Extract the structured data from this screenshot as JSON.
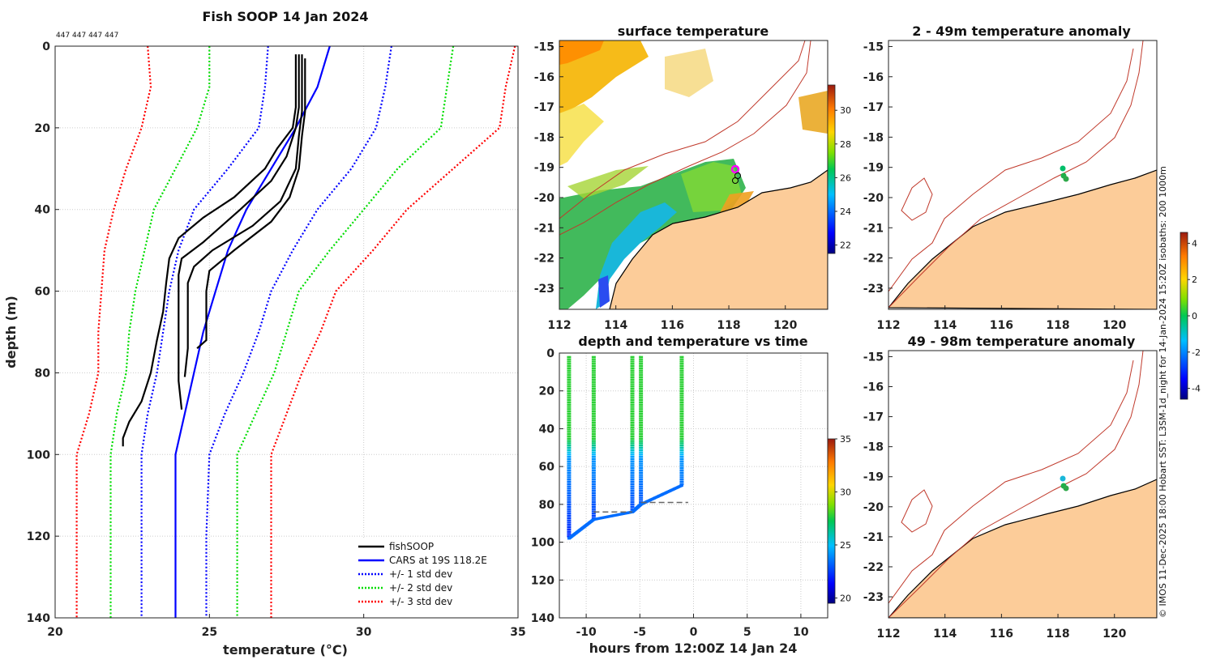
{
  "chart_data": [
    {
      "type": "line",
      "title": "Fish SOOP 14 Jan 2024",
      "ids_text": "447 447 447 447",
      "xlabel": "temperature (°C)",
      "ylabel": "depth (m)",
      "xlim": [
        20,
        35
      ],
      "ylim": [
        0,
        140
      ],
      "xticks": [
        "20",
        "25",
        "30",
        "35"
      ],
      "yticks": [
        "0",
        "20",
        "40",
        "60",
        "80",
        "100",
        "120",
        "140"
      ],
      "legend": [
        "fishSOOP",
        "CARS at 19S 118.2E",
        "+/- 1 std dev",
        "+/- 2 std dev",
        "+/- 3 std dev"
      ],
      "series": [
        {
          "name": "CARS",
          "color": "#0000ff",
          "style": "solid",
          "points": [
            [
              28.9,
              0
            ],
            [
              28.5,
              10
            ],
            [
              27.8,
              20
            ],
            [
              27.0,
              30
            ],
            [
              26.2,
              40
            ],
            [
              25.6,
              50
            ],
            [
              25.2,
              60
            ],
            [
              24.8,
              70
            ],
            [
              24.5,
              80
            ],
            [
              24.2,
              90
            ],
            [
              23.9,
              100
            ],
            [
              23.9,
              120
            ],
            [
              23.9,
              140
            ]
          ]
        },
        {
          "name": "+1 std",
          "color": "#0000ff",
          "style": "dotted",
          "points": [
            [
              30.9,
              0
            ],
            [
              30.7,
              10
            ],
            [
              30.4,
              20
            ],
            [
              29.6,
              30
            ],
            [
              28.5,
              40
            ],
            [
              27.7,
              50
            ],
            [
              27.0,
              60
            ],
            [
              26.6,
              70
            ],
            [
              26.1,
              80
            ],
            [
              25.5,
              90
            ],
            [
              25.0,
              100
            ],
            [
              24.9,
              120
            ],
            [
              24.9,
              140
            ]
          ]
        },
        {
          "name": "-1 std",
          "color": "#0000ff",
          "style": "dotted",
          "points": [
            [
              26.9,
              0
            ],
            [
              26.8,
              10
            ],
            [
              26.6,
              20
            ],
            [
              25.6,
              30
            ],
            [
              24.5,
              40
            ],
            [
              24.0,
              50
            ],
            [
              23.7,
              60
            ],
            [
              23.5,
              70
            ],
            [
              23.3,
              80
            ],
            [
              23.0,
              90
            ],
            [
              22.8,
              100
            ],
            [
              22.8,
              120
            ],
            [
              22.8,
              140
            ]
          ]
        },
        {
          "name": "+2 std",
          "color": "#00dd00",
          "style": "dotted",
          "points": [
            [
              32.9,
              0
            ],
            [
              32.7,
              10
            ],
            [
              32.5,
              20
            ],
            [
              31.1,
              30
            ],
            [
              30.0,
              40
            ],
            [
              28.9,
              50
            ],
            [
              27.9,
              60
            ],
            [
              27.5,
              70
            ],
            [
              27.1,
              80
            ],
            [
              26.5,
              90
            ],
            [
              25.9,
              100
            ],
            [
              25.9,
              120
            ],
            [
              25.9,
              140
            ]
          ]
        },
        {
          "name": "-2 std",
          "color": "#00dd00",
          "style": "dotted",
          "points": [
            [
              25.0,
              0
            ],
            [
              25.0,
              10
            ],
            [
              24.6,
              20
            ],
            [
              23.9,
              30
            ],
            [
              23.2,
              40
            ],
            [
              22.9,
              50
            ],
            [
              22.6,
              60
            ],
            [
              22.4,
              70
            ],
            [
              22.3,
              80
            ],
            [
              22.0,
              90
            ],
            [
              21.8,
              100
            ],
            [
              21.8,
              120
            ],
            [
              21.8,
              140
            ]
          ]
        },
        {
          "name": "+3 std",
          "color": "#ff0000",
          "style": "dotted",
          "points": [
            [
              34.9,
              0
            ],
            [
              34.6,
              10
            ],
            [
              34.4,
              20
            ],
            [
              32.9,
              30
            ],
            [
              31.4,
              40
            ],
            [
              30.3,
              50
            ],
            [
              29.1,
              60
            ],
            [
              28.6,
              70
            ],
            [
              28.0,
              80
            ],
            [
              27.5,
              90
            ],
            [
              27.0,
              100
            ],
            [
              27.0,
              120
            ],
            [
              27.0,
              140
            ]
          ]
        },
        {
          "name": "-3 std",
          "color": "#ff0000",
          "style": "dotted",
          "points": [
            [
              23.0,
              0
            ],
            [
              23.1,
              10
            ],
            [
              22.8,
              20
            ],
            [
              22.3,
              30
            ],
            [
              21.9,
              40
            ],
            [
              21.6,
              50
            ],
            [
              21.5,
              60
            ],
            [
              21.4,
              70
            ],
            [
              21.4,
              80
            ],
            [
              21.1,
              90
            ],
            [
              20.7,
              100
            ],
            [
              20.7,
              120
            ],
            [
              20.7,
              140
            ]
          ]
        },
        {
          "name": "fishSOOP cast 1",
          "color": "#000000",
          "style": "solid",
          "points": [
            [
              27.8,
              2
            ],
            [
              27.8,
              15
            ],
            [
              27.7,
              20
            ],
            [
              27.2,
              25
            ],
            [
              26.8,
              30
            ],
            [
              25.8,
              37
            ],
            [
              24.8,
              42
            ],
            [
              24.0,
              47
            ],
            [
              23.7,
              52
            ],
            [
              23.6,
              58
            ],
            [
              23.5,
              65
            ],
            [
              23.3,
              72
            ],
            [
              23.1,
              80
            ],
            [
              22.8,
              87
            ],
            [
              22.4,
              92
            ],
            [
              22.2,
              96
            ],
            [
              22.2,
              98
            ]
          ]
        },
        {
          "name": "fishSOOP cast 2",
          "color": "#000000",
          "style": "solid",
          "points": [
            [
              27.9,
              2
            ],
            [
              27.9,
              15
            ],
            [
              27.8,
              20
            ],
            [
              27.5,
              27
            ],
            [
              27.0,
              33
            ],
            [
              26.0,
              40
            ],
            [
              24.8,
              48
            ],
            [
              24.1,
              52
            ],
            [
              24.0,
              56
            ],
            [
              24.0,
              62
            ],
            [
              24.0,
              70
            ],
            [
              24.0,
              78
            ],
            [
              24.0,
              82
            ],
            [
              24.1,
              89
            ]
          ]
        },
        {
          "name": "fishSOOP cast 3",
          "color": "#000000",
          "style": "solid",
          "points": [
            [
              28.0,
              2
            ],
            [
              28.0,
              16
            ],
            [
              27.9,
              22
            ],
            [
              27.8,
              30
            ],
            [
              27.3,
              38
            ],
            [
              26.4,
              44
            ],
            [
              25.1,
              50
            ],
            [
              24.5,
              54
            ],
            [
              24.3,
              58
            ],
            [
              24.3,
              66
            ],
            [
              24.3,
              74
            ],
            [
              24.2,
              81
            ]
          ]
        },
        {
          "name": "fishSOOP cast 4",
          "color": "#000000",
          "style": "solid",
          "points": [
            [
              28.1,
              3
            ],
            [
              28.1,
              16
            ],
            [
              28.0,
              22
            ],
            [
              27.9,
              30
            ],
            [
              27.6,
              37
            ],
            [
              27.0,
              43
            ],
            [
              25.8,
              50
            ],
            [
              25.0,
              55
            ],
            [
              24.9,
              60
            ],
            [
              24.9,
              67
            ],
            [
              24.9,
              72
            ],
            [
              24.6,
              74
            ]
          ]
        }
      ]
    },
    {
      "type": "heatmap",
      "title": "surface temperature",
      "xlim": [
        112,
        121.5
      ],
      "ylim": [
        -23.7,
        -14.8
      ],
      "xticks": [
        "112",
        "114",
        "116",
        "118",
        "120"
      ],
      "yticks": [
        "-15",
        "-16",
        "-17",
        "-18",
        "-19",
        "-20",
        "-21",
        "-22",
        "-23"
      ],
      "colorbar_ticks": [
        "30",
        "28",
        "26",
        "24",
        "22"
      ],
      "colorbar_range": [
        21.5,
        31.5
      ]
    },
    {
      "type": "scatter",
      "title": "depth and temperature vs time",
      "xlabel": "hours from 12:00Z 14 Jan 24",
      "xlim": [
        -12.5,
        12.5
      ],
      "ylim": [
        0,
        140
      ],
      "xticks": [
        "-10",
        "-5",
        "0",
        "5",
        "10"
      ],
      "yticks": [
        "0",
        "20",
        "40",
        "60",
        "80",
        "100",
        "120",
        "140"
      ],
      "colorbar_ticks": [
        "35",
        "30",
        "25",
        "20"
      ],
      "colorbar_range": [
        19.5,
        35
      ],
      "casts_hours": [
        -11.6,
        -9.3,
        -5.7,
        -4.9,
        -1.1
      ],
      "casts_max_depth": [
        98,
        88,
        84,
        80,
        70
      ]
    },
    {
      "type": "scatter",
      "title": "2 - 49m temperature anomaly",
      "xlim": [
        112,
        121.5
      ],
      "ylim": [
        -23.7,
        -14.8
      ],
      "xticks": [
        "112",
        "114",
        "116",
        "118",
        "120"
      ],
      "yticks": [
        "-15",
        "-16",
        "-17",
        "-18",
        "-19",
        "-20",
        "-21",
        "-22",
        "-23"
      ],
      "points": [
        {
          "lon": 118.2,
          "lat": -19.0,
          "anomaly": 0.1
        },
        {
          "lon": 118.25,
          "lat": -19.25,
          "anomaly": 0.0
        },
        {
          "lon": 118.35,
          "lat": -19.35,
          "anomaly": 0.2
        }
      ]
    },
    {
      "type": "scatter",
      "title": "49 - 98m temperature anomaly",
      "xlim": [
        112,
        121.5
      ],
      "ylim": [
        -23.7,
        -14.8
      ],
      "xticks": [
        "112",
        "114",
        "116",
        "118",
        "120"
      ],
      "yticks": [
        "-15",
        "-16",
        "-17",
        "-18",
        "-19",
        "-20",
        "-21",
        "-22",
        "-23"
      ],
      "points": [
        {
          "lon": 118.2,
          "lat": -19.0,
          "anomaly": -1.5
        },
        {
          "lon": 118.25,
          "lat": -19.25,
          "anomaly": 0.3
        },
        {
          "lon": 118.35,
          "lat": -19.35,
          "anomaly": 0.4
        }
      ]
    }
  ],
  "anomaly_colorbar_ticks": [
    "4",
    "2",
    "0",
    "-2",
    "-4"
  ],
  "anomaly_colorbar_range": [
    -4.6,
    4.6
  ],
  "credit": "© IMOS 11-Dec-2025 18:00 Hobart SST: L3SM-1d_night for 14-Jan-2024 15:20Z isobaths: 200  1000m",
  "colors": {
    "land": "#fccc99",
    "isobath": "#c0392b",
    "coast": "#000000"
  }
}
